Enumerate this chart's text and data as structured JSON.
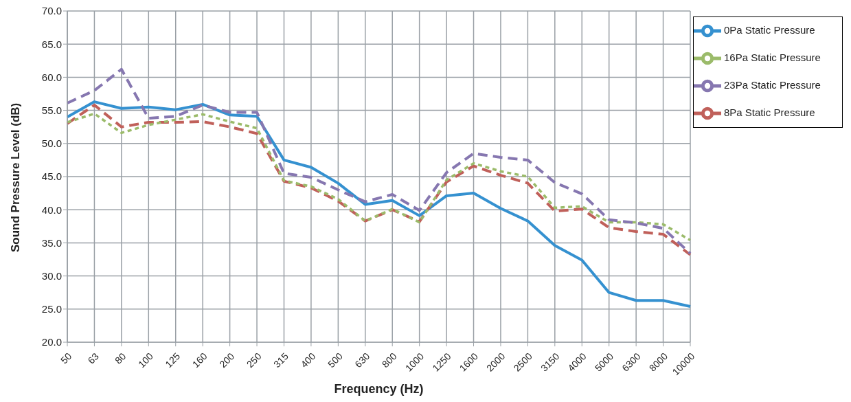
{
  "chart_data": {
    "type": "line",
    "xlabel": "Frequency (Hz)",
    "ylabel": "Sound Pressure Level (dB)",
    "categories": [
      "50",
      "63",
      "80",
      "100",
      "125",
      "160",
      "200",
      "250",
      "315",
      "400",
      "500",
      "630",
      "800",
      "1000",
      "1250",
      "1600",
      "2000",
      "2500",
      "3150",
      "4000",
      "5000",
      "6300",
      "8000",
      "10000"
    ],
    "series": [
      {
        "name": "0Pa Static Pressure",
        "color": "#3591d0",
        "line_style": "solid",
        "values": [
          54.0,
          56.3,
          55.3,
          55.5,
          55.1,
          55.9,
          54.3,
          54.1,
          47.5,
          46.4,
          44.0,
          40.8,
          41.4,
          39.1,
          42.1,
          42.5,
          40.2,
          38.3,
          34.6,
          32.4,
          27.5,
          26.3,
          26.3,
          25.4
        ]
      },
      {
        "name": "8Pa Static Pressure",
        "color": "#c0605a",
        "line_style": "dashed",
        "values": [
          53.0,
          55.8,
          52.5,
          53.2,
          53.2,
          53.3,
          52.5,
          51.5,
          44.3,
          43.3,
          41.3,
          38.3,
          40.0,
          38.2,
          44.2,
          46.6,
          45.2,
          44.0,
          39.8,
          40.1,
          37.3,
          36.7,
          36.3,
          33.2
        ]
      },
      {
        "name": "16Pa Static Pressure",
        "color": "#9bbb6a",
        "line_style": "dotted",
        "values": [
          53.2,
          54.5,
          51.6,
          52.8,
          53.6,
          54.4,
          53.3,
          52.3,
          44.4,
          43.5,
          41.6,
          38.3,
          40.1,
          38.1,
          44.5,
          47.0,
          45.8,
          45.0,
          40.3,
          40.5,
          38.1,
          38.1,
          37.8,
          35.4
        ]
      },
      {
        "name": "23Pa Static Pressure",
        "color": "#8677b0",
        "line_style": "dashed",
        "values": [
          56.1,
          58.0,
          61.2,
          53.8,
          54.1,
          55.8,
          54.7,
          54.7,
          45.5,
          44.9,
          43.0,
          41.2,
          42.3,
          39.9,
          45.6,
          48.5,
          47.9,
          47.5,
          44.1,
          42.4,
          38.5,
          38.0,
          37.2,
          33.4
        ]
      }
    ],
    "ylim": [
      20,
      70
    ],
    "yticks": [
      {
        "value": 20,
        "label": "20.0"
      },
      {
        "value": 25,
        "label": "25.0"
      },
      {
        "value": 30,
        "label": "30.0"
      },
      {
        "value": 35,
        "label": "35.0"
      },
      {
        "value": 40,
        "label": "40.0"
      },
      {
        "value": 45,
        "label": "45.0"
      },
      {
        "value": 50,
        "label": "50.0"
      },
      {
        "value": 55,
        "label": "55.0"
      },
      {
        "value": 60,
        "label": "60.0"
      },
      {
        "value": 65,
        "label": "65.0"
      },
      {
        "value": 70,
        "label": "70.0"
      }
    ],
    "grid": true,
    "legend": "top right",
    "marker": "none"
  }
}
